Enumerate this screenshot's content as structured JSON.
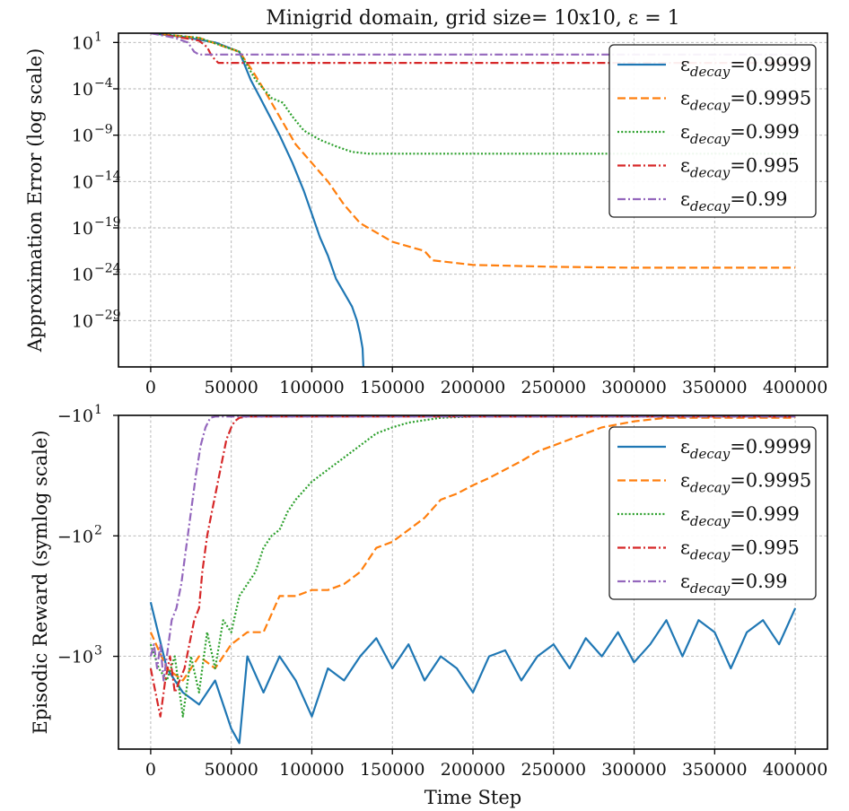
{
  "chart_data": [
    {
      "type": "line",
      "title": "Minigrid domain, grid size= 10x10, ε = 1",
      "xlabel": "",
      "ylabel": "Approximation Error (log scale)",
      "yscale": "log",
      "xlim": [
        -20000,
        420000
      ],
      "x_ticks": [
        0,
        50000,
        100000,
        150000,
        200000,
        250000,
        300000,
        350000,
        400000
      ],
      "x_tick_labels": [
        "0",
        "50000",
        "100000",
        "150000",
        "200000",
        "250000",
        "300000",
        "350000",
        "400000"
      ],
      "ylim_log10": [
        -34,
        2
      ],
      "y_ticks_log10": [
        1,
        -4,
        -9,
        -14,
        -19,
        -24,
        -29
      ],
      "y_tick_labels": [
        "10",
        "10",
        "10",
        "10",
        "10",
        "10",
        "10"
      ],
      "y_tick_exponents": [
        "1",
        "−4",
        "−9",
        "−14",
        "−19",
        "−24",
        "−29"
      ],
      "grid": true,
      "legend_position": "top-right",
      "series": [
        {
          "name": "εdecay=0.9999",
          "label_main": "ε",
          "label_sub": "decay",
          "label_val": "=0.9999",
          "color": "#1f77b4",
          "style": "solid",
          "x": [
            0,
            20000,
            40000,
            55000,
            62000,
            68000,
            74000,
            80000,
            88000,
            95000,
            100000,
            105000,
            110000,
            115000,
            120000,
            125000,
            128000,
            130000,
            131500,
            132000
          ],
          "y_log10": [
            2,
            1.6,
            1,
            0,
            -3,
            -5,
            -7,
            -9,
            -12,
            -15,
            -17.5,
            -20,
            -22,
            -24.5,
            -26,
            -27.5,
            -29,
            -30.5,
            -32,
            -34
          ]
        },
        {
          "name": "εdecay=0.9995",
          "label_main": "ε",
          "label_sub": "decay",
          "label_val": "=0.9995",
          "color": "#ff7f0e",
          "style": "dashed",
          "x": [
            0,
            30000,
            55000,
            63000,
            70000,
            80000,
            90000,
            100000,
            110000,
            120000,
            130000,
            140000,
            150000,
            160000,
            170000,
            175000,
            200000,
            250000,
            300000,
            350000,
            400000
          ],
          "y_log10": [
            2,
            1.5,
            0,
            -2,
            -4,
            -7,
            -10,
            -12,
            -14,
            -16.5,
            -18.5,
            -19.5,
            -20.5,
            -21,
            -21.5,
            -22.5,
            -23,
            -23.2,
            -23.3,
            -23.3,
            -23.3
          ]
        },
        {
          "name": "εdecay=0.999",
          "label_main": "ε",
          "label_sub": "decay",
          "label_val": "=0.999",
          "color": "#2ca02c",
          "style": "dotted",
          "x": [
            0,
            30000,
            55000,
            65000,
            75000,
            82000,
            88000,
            95000,
            105000,
            115000,
            125000,
            135000,
            200000,
            300000,
            400000
          ],
          "y_log10": [
            2,
            1.5,
            0,
            -3,
            -5,
            -5.5,
            -7,
            -8.5,
            -9.5,
            -10.2,
            -10.8,
            -11,
            -11,
            -11,
            -11
          ]
        },
        {
          "name": "εdecay=0.995",
          "label_main": "ε",
          "label_sub": "decay",
          "label_val": "=0.995",
          "color": "#d62728",
          "style": "dashdot",
          "x": [
            0,
            20000,
            30000,
            35000,
            38000,
            42000,
            100000,
            200000,
            300000,
            400000
          ],
          "y_log10": [
            2,
            1.5,
            1.2,
            0.5,
            -0.5,
            -1.2,
            -1.2,
            -1.2,
            -1.2,
            -1.2
          ]
        },
        {
          "name": "εdecay=0.99",
          "label_main": "ε",
          "label_sub": "decay",
          "label_val": "=0.99",
          "color": "#9467bd",
          "style": "dashdot",
          "x": [
            0,
            15000,
            23000,
            27000,
            30000,
            100000,
            200000,
            300000,
            400000
          ],
          "y_log10": [
            2,
            1.5,
            1,
            0,
            -0.3,
            -0.3,
            -0.3,
            -0.3,
            -0.3
          ]
        }
      ]
    },
    {
      "type": "line",
      "title": "",
      "xlabel": "Time Step",
      "ylabel": "Episodic Reward (symlog scale)",
      "yscale": "symlog",
      "xlim": [
        -20000,
        420000
      ],
      "x_ticks": [
        0,
        50000,
        100000,
        150000,
        200000,
        250000,
        300000,
        350000,
        400000
      ],
      "x_tick_labels": [
        "0",
        "50000",
        "100000",
        "150000",
        "200000",
        "250000",
        "300000",
        "350000",
        "400000"
      ],
      "ylim_log10": [
        3.77,
        1.0
      ],
      "y_ticks_log10": [
        1,
        2,
        3
      ],
      "y_tick_labels": [
        "−10",
        "−10",
        "−10"
      ],
      "y_tick_exponents": [
        "1",
        "2",
        "3"
      ],
      "grid": true,
      "legend_position": "top-right",
      "series": [
        {
          "name": "εdecay=0.9999",
          "label_main": "ε",
          "label_sub": "decay",
          "label_val": "=0.9999",
          "color": "#1f77b4",
          "style": "solid",
          "x": [
            0,
            10000,
            20000,
            30000,
            40000,
            50000,
            55000,
            60000,
            70000,
            80000,
            90000,
            100000,
            110000,
            120000,
            130000,
            140000,
            150000,
            160000,
            170000,
            180000,
            190000,
            200000,
            210000,
            220000,
            230000,
            240000,
            250000,
            260000,
            270000,
            280000,
            290000,
            300000,
            310000,
            320000,
            330000,
            340000,
            350000,
            360000,
            370000,
            380000,
            390000,
            400000
          ],
          "y_log10": [
            2.55,
            3.1,
            3.3,
            3.4,
            3.2,
            3.6,
            3.72,
            3.0,
            3.3,
            3.0,
            3.2,
            3.5,
            3.1,
            3.2,
            3.0,
            2.85,
            3.1,
            2.9,
            3.2,
            3.0,
            3.1,
            3.3,
            3.0,
            2.95,
            3.2,
            3.0,
            2.9,
            3.1,
            2.85,
            3.0,
            2.8,
            3.05,
            2.9,
            2.7,
            3.0,
            2.7,
            2.8,
            3.1,
            2.8,
            2.7,
            2.9,
            2.6
          ]
        },
        {
          "name": "εdecay=0.9995",
          "label_main": "ε",
          "label_sub": "decay",
          "label_val": "=0.9995",
          "color": "#ff7f0e",
          "style": "dashed",
          "x": [
            0,
            10000,
            20000,
            30000,
            40000,
            50000,
            60000,
            70000,
            80000,
            90000,
            100000,
            110000,
            120000,
            130000,
            140000,
            150000,
            160000,
            170000,
            180000,
            190000,
            200000,
            210000,
            220000,
            230000,
            240000,
            250000,
            260000,
            270000,
            280000,
            300000,
            320000,
            340000,
            360000,
            380000,
            400000
          ],
          "y_log10": [
            2.8,
            3.1,
            3.2,
            3.0,
            3.1,
            2.9,
            2.8,
            2.8,
            2.5,
            2.5,
            2.45,
            2.45,
            2.4,
            2.3,
            2.1,
            2.05,
            1.95,
            1.85,
            1.7,
            1.65,
            1.58,
            1.52,
            1.45,
            1.38,
            1.3,
            1.25,
            1.2,
            1.15,
            1.1,
            1.05,
            1.02,
            1.02,
            1.02,
            1.02,
            1.02
          ]
        },
        {
          "name": "εdecay=0.999",
          "label_main": "ε",
          "label_sub": "decay",
          "label_val": "=0.999",
          "color": "#2ca02c",
          "style": "dotted",
          "x": [
            0,
            5000,
            10000,
            15000,
            20000,
            25000,
            30000,
            35000,
            40000,
            45000,
            50000,
            55000,
            60000,
            65000,
            70000,
            75000,
            80000,
            85000,
            90000,
            100000,
            110000,
            120000,
            130000,
            140000,
            150000,
            160000,
            170000,
            180000,
            200000,
            250000,
            300000,
            350000,
            400000
          ],
          "y_log10": [
            2.9,
            3.1,
            3.2,
            3.0,
            3.5,
            3.0,
            3.3,
            2.8,
            3.1,
            2.7,
            2.8,
            2.5,
            2.4,
            2.3,
            2.1,
            2.0,
            1.95,
            1.8,
            1.7,
            1.55,
            1.45,
            1.35,
            1.25,
            1.15,
            1.1,
            1.06,
            1.04,
            1.02,
            1.01,
            1.01,
            1.01,
            1.01,
            1.01
          ]
        },
        {
          "name": "εdecay=0.995",
          "label_main": "ε",
          "label_sub": "decay",
          "label_val": "=0.995",
          "color": "#d62728",
          "style": "dashdot",
          "x": [
            0,
            3000,
            6000,
            9000,
            12000,
            15000,
            18000,
            21000,
            24000,
            27000,
            30000,
            32000,
            35000,
            38000,
            41000,
            44000,
            47000,
            50000,
            52000,
            55000,
            60000,
            100000,
            200000,
            300000,
            400000
          ],
          "y_log10": [
            3.1,
            3.3,
            3.5,
            3.2,
            3.0,
            3.3,
            3.2,
            3.1,
            2.9,
            2.7,
            2.6,
            2.3,
            2.0,
            1.8,
            1.6,
            1.4,
            1.2,
            1.1,
            1.05,
            1.02,
            1.01,
            1.01,
            1.01,
            1.01,
            1.01
          ]
        },
        {
          "name": "εdecay=0.99",
          "label_main": "ε",
          "label_sub": "decay",
          "label_val": "=0.99",
          "color": "#9467bd",
          "style": "dashdot",
          "x": [
            0,
            2000,
            4000,
            6000,
            8000,
            10000,
            13000,
            16000,
            19000,
            22000,
            25000,
            28000,
            31000,
            34000,
            37000,
            40000,
            45000,
            100000,
            200000,
            300000,
            400000
          ],
          "y_log10": [
            3.0,
            2.9,
            3.1,
            2.9,
            3.2,
            3.0,
            2.7,
            2.6,
            2.4,
            2.1,
            1.8,
            1.5,
            1.25,
            1.1,
            1.02,
            1.01,
            1.01,
            1.01,
            1.01,
            1.01,
            1.01
          ]
        }
      ]
    }
  ]
}
